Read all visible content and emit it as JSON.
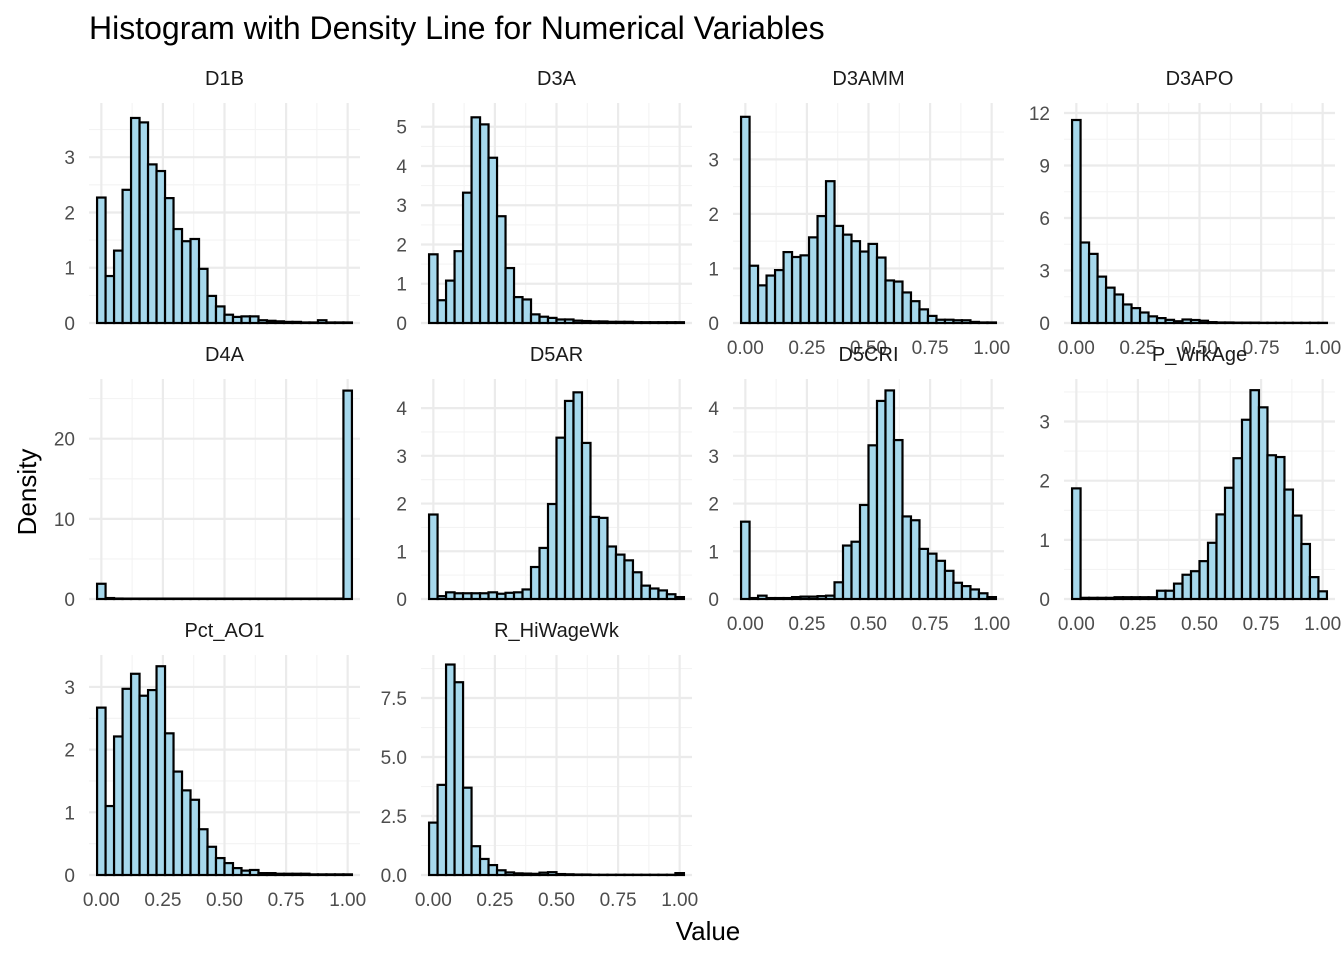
{
  "chart_data": {
    "type": "bar",
    "title": "Histogram with Density Line for Numerical Variables",
    "xlabel": "Value",
    "ylabel": "Density",
    "grid": true,
    "bar_fill": "#a6d8ec",
    "bar_stroke": "#000000",
    "x_tick_labels": [
      "0.00",
      "0.25",
      "0.50",
      "0.75",
      "1.00"
    ],
    "panels": [
      {
        "name": "D1B",
        "ylim": [
          0,
          3.8
        ],
        "y_ticks": [
          "0",
          "1",
          "2",
          "3"
        ],
        "y_tick_values": [
          0,
          1,
          2,
          3
        ],
        "values": [
          2.27,
          0.85,
          1.31,
          2.41,
          3.71,
          3.63,
          2.87,
          2.75,
          2.26,
          1.7,
          1.48,
          1.52,
          0.98,
          0.49,
          0.3,
          0.15,
          0.11,
          0.12,
          0.12,
          0.05,
          0.04,
          0.03,
          0.02,
          0.02,
          0.01,
          0.01,
          0.05,
          0.01,
          0.01,
          0.01
        ]
      },
      {
        "name": "D3A",
        "ylim": [
          0,
          5.35
        ],
        "y_ticks": [
          "0",
          "1",
          "2",
          "3",
          "4",
          "5"
        ],
        "y_tick_values": [
          0,
          1,
          2,
          3,
          4,
          5
        ],
        "values": [
          1.75,
          0.58,
          1.08,
          1.83,
          3.32,
          5.24,
          5.06,
          4.21,
          2.72,
          1.4,
          0.66,
          0.6,
          0.22,
          0.16,
          0.13,
          0.09,
          0.09,
          0.06,
          0.05,
          0.04,
          0.04,
          0.03,
          0.03,
          0.03,
          0.02,
          0.02,
          0.02,
          0.02,
          0.02,
          0.02
        ]
      },
      {
        "name": "D3AMM",
        "ylim": [
          0,
          3.85
        ],
        "y_ticks": [
          "0",
          "1",
          "2",
          "3"
        ],
        "y_tick_values": [
          0,
          1,
          2,
          3
        ],
        "values": [
          3.78,
          1.05,
          0.69,
          0.87,
          0.97,
          1.3,
          1.21,
          1.24,
          1.57,
          1.96,
          2.6,
          1.78,
          1.62,
          1.5,
          1.31,
          1.45,
          1.2,
          0.78,
          0.76,
          0.56,
          0.4,
          0.25,
          0.13,
          0.06,
          0.06,
          0.05,
          0.05,
          0.02,
          0.01,
          0.01
        ]
      },
      {
        "name": "D3APO",
        "ylim": [
          0,
          12
        ],
        "y_ticks": [
          "0",
          "3",
          "6",
          "9",
          "12"
        ],
        "y_tick_values": [
          0,
          3,
          6,
          9,
          12
        ],
        "values": [
          11.6,
          4.6,
          3.95,
          2.65,
          2.02,
          1.63,
          1.06,
          0.85,
          0.6,
          0.38,
          0.28,
          0.18,
          0.1,
          0.2,
          0.17,
          0.13,
          0.05,
          0.03,
          0.03,
          0.02,
          0.02,
          0.02,
          0.01,
          0.01,
          0.01,
          0.01,
          0.01,
          0.01,
          0.01,
          0.01
        ]
      },
      {
        "name": "D4A",
        "ylim": [
          0,
          26.2
        ],
        "y_ticks": [
          "0",
          "10",
          "20"
        ],
        "y_tick_values": [
          0,
          10,
          20
        ],
        "values": [
          1.9,
          0.12,
          0.06,
          0.05,
          0.05,
          0.05,
          0.05,
          0.05,
          0.05,
          0.05,
          0.05,
          0.05,
          0.05,
          0.05,
          0.05,
          0.05,
          0.05,
          0.05,
          0.05,
          0.05,
          0.05,
          0.05,
          0.05,
          0.05,
          0.05,
          0.05,
          0.05,
          0.05,
          0.05,
          26.0
        ]
      },
      {
        "name": "D5AR",
        "ylim": [
          0,
          4.4
        ],
        "y_ticks": [
          "0",
          "1",
          "2",
          "3",
          "4"
        ],
        "y_tick_values": [
          0,
          1,
          2,
          3,
          4
        ],
        "values": [
          1.77,
          0.06,
          0.14,
          0.12,
          0.12,
          0.12,
          0.12,
          0.14,
          0.11,
          0.13,
          0.14,
          0.2,
          0.67,
          1.07,
          1.99,
          3.38,
          4.15,
          4.33,
          3.27,
          1.72,
          1.7,
          1.1,
          0.93,
          0.81,
          0.56,
          0.28,
          0.22,
          0.18,
          0.1,
          0.04
        ]
      },
      {
        "name": "D5CRI",
        "ylim": [
          0,
          4.4
        ],
        "y_ticks": [
          "0",
          "1",
          "2",
          "3",
          "4"
        ],
        "y_tick_values": [
          0,
          1,
          2,
          3,
          4
        ],
        "values": [
          1.62,
          0.02,
          0.07,
          0.02,
          0.02,
          0.02,
          0.04,
          0.05,
          0.05,
          0.06,
          0.07,
          0.35,
          1.12,
          1.2,
          1.97,
          3.22,
          4.15,
          4.37,
          3.33,
          1.73,
          1.65,
          1.05,
          0.95,
          0.8,
          0.59,
          0.34,
          0.27,
          0.2,
          0.12,
          0.04
        ]
      },
      {
        "name": "P_WrkAge",
        "ylim": [
          0,
          3.55
        ],
        "y_ticks": [
          "0",
          "1",
          "2",
          "3"
        ],
        "y_tick_values": [
          0,
          1,
          2,
          3
        ],
        "values": [
          1.87,
          0.02,
          0.02,
          0.02,
          0.02,
          0.03,
          0.03,
          0.03,
          0.03,
          0.03,
          0.14,
          0.14,
          0.26,
          0.41,
          0.47,
          0.64,
          0.95,
          1.43,
          1.88,
          2.38,
          3.03,
          3.53,
          3.24,
          2.43,
          2.4,
          1.85,
          1.41,
          0.93,
          0.37,
          0.13
        ]
      },
      {
        "name": "Pct_AO1",
        "ylim": [
          0,
          3.35
        ],
        "y_ticks": [
          "0",
          "1",
          "2",
          "3"
        ],
        "y_tick_values": [
          0,
          1,
          2,
          3
        ],
        "values": [
          2.67,
          1.1,
          2.21,
          2.97,
          3.21,
          2.86,
          2.95,
          3.33,
          2.26,
          1.65,
          1.35,
          1.2,
          0.73,
          0.45,
          0.27,
          0.19,
          0.11,
          0.07,
          0.08,
          0.03,
          0.03,
          0.02,
          0.02,
          0.02,
          0.02,
          0.01,
          0.01,
          0.01,
          0.01,
          0.01
        ]
      },
      {
        "name": "R_HiWageWk",
        "ylim": [
          0,
          8.9
        ],
        "y_ticks": [
          "0.0",
          "2.5",
          "5.0",
          "7.5"
        ],
        "y_tick_values": [
          0,
          2.5,
          5.0,
          7.5
        ],
        "values": [
          2.22,
          3.82,
          8.92,
          8.17,
          3.7,
          1.22,
          0.68,
          0.42,
          0.2,
          0.11,
          0.07,
          0.06,
          0.05,
          0.1,
          0.12,
          0.04,
          0.03,
          0.02,
          0.02,
          0.01,
          0.01,
          0.01,
          0.01,
          0.01,
          0.01,
          0.01,
          0.01,
          0.01,
          0.01,
          0.08
        ]
      }
    ]
  }
}
